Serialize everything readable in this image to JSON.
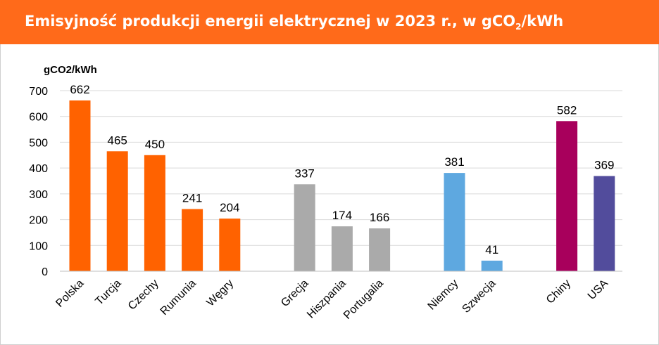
{
  "header": {
    "title_main": "Emisyjność produkcji energii elektrycznej w 2023 r., w gCO",
    "title_sub": "2",
    "title_end": "/kWh"
  },
  "chart_data": {
    "type": "bar",
    "ylabel": "gCO2/kWh",
    "ylim": [
      0,
      700
    ],
    "yticks": [
      0,
      100,
      200,
      300,
      400,
      500,
      600,
      700
    ],
    "grid": true,
    "categories": [
      "Polska",
      "Turcja",
      "Czechy",
      "Rumunia",
      "Węgry",
      "Grecja",
      "Hiszpania",
      "Portugalia",
      "Niemcy",
      "Szwecja",
      "Chiny",
      "USA"
    ],
    "values": [
      662,
      465,
      450,
      241,
      204,
      337,
      174,
      166,
      381,
      41,
      582,
      369
    ],
    "colors": [
      "#ff6200",
      "#ff6200",
      "#ff6200",
      "#ff6200",
      "#ff6200",
      "#aaaaaa",
      "#aaaaaa",
      "#aaaaaa",
      "#5ea8e0",
      "#5ea8e0",
      "#a8005c",
      "#524c9c"
    ]
  }
}
